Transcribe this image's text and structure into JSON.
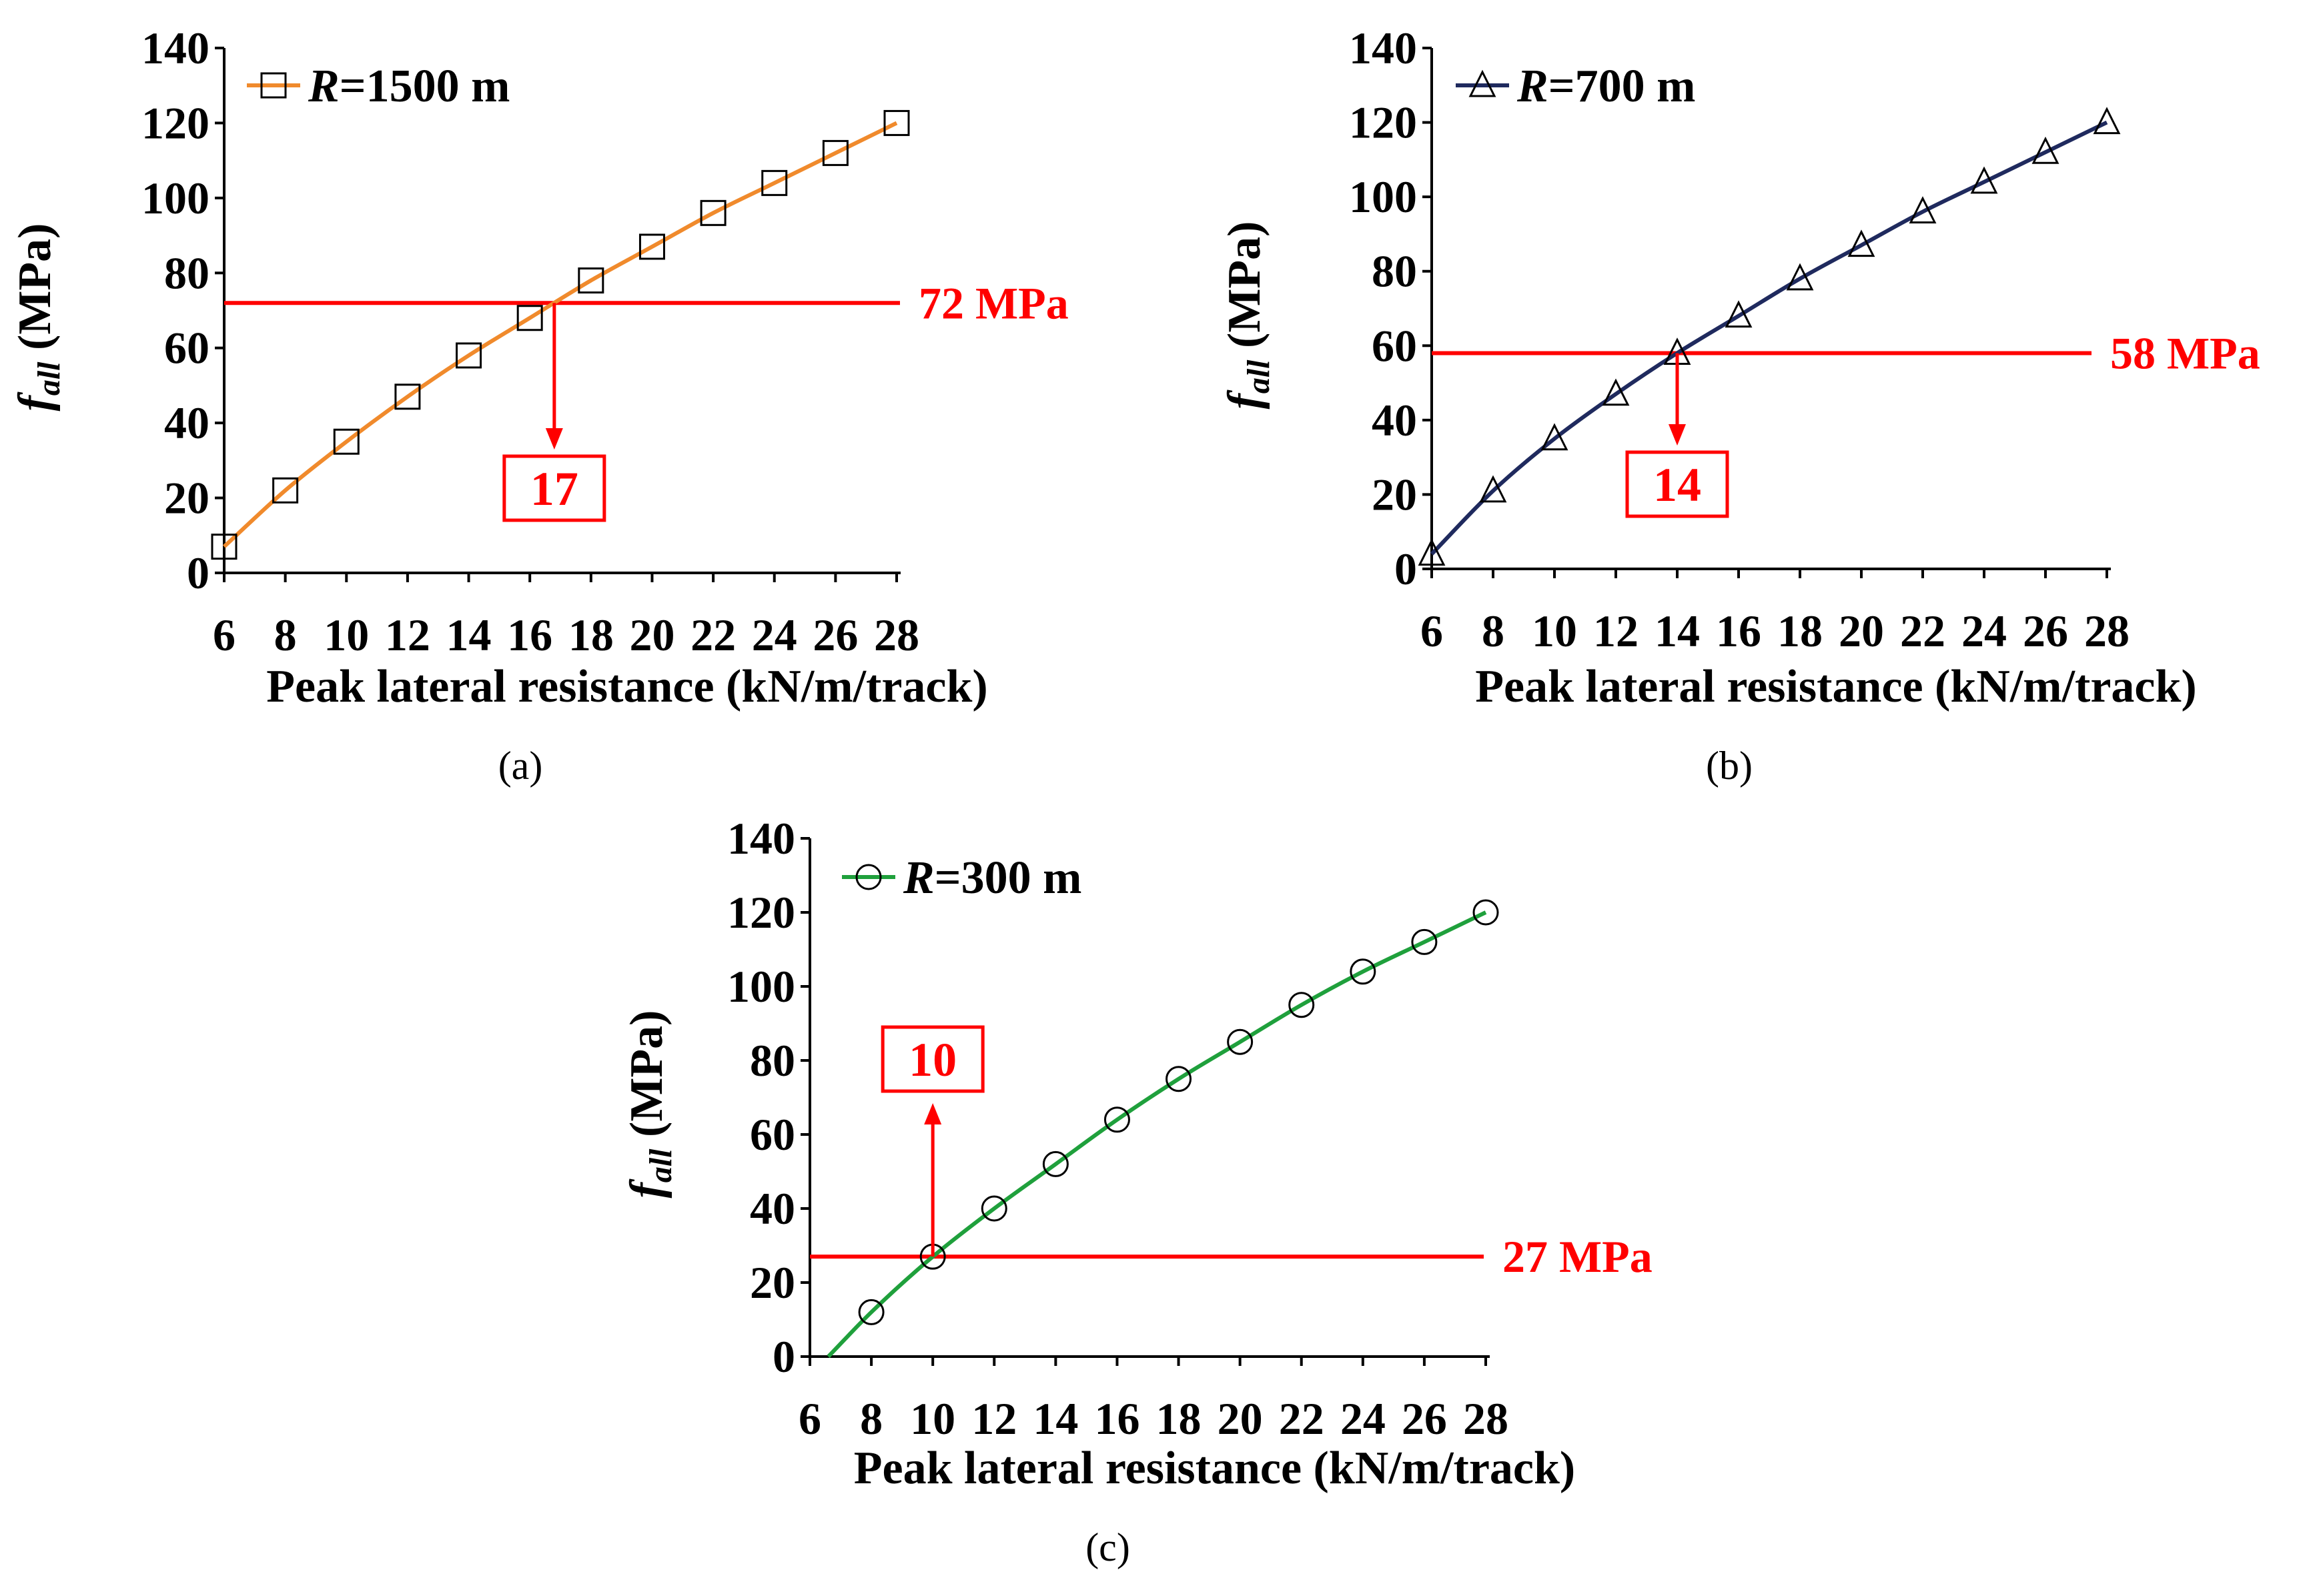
{
  "chart_data": [
    {
      "type": "line",
      "panel_label": "(a)",
      "series": [
        {
          "name": "R=1500 m",
          "legend_prefix": "R",
          "legend_suffix": "=1500 m",
          "marker": "square",
          "color": "#f08a2c",
          "x": [
            6,
            8,
            10,
            12,
            14,
            16,
            18,
            20,
            22,
            24,
            26,
            28
          ],
          "values": [
            7,
            22,
            35,
            47,
            58,
            68,
            78,
            87,
            96,
            104,
            112,
            120
          ]
        }
      ],
      "xlabel": "Peak lateral resistance (kN/m/track)",
      "ylabel_main": "f",
      "ylabel_sub": "all",
      "ylabel_unit": " (MPa)",
      "xlim": [
        6,
        28
      ],
      "ylim": [
        0,
        140
      ],
      "xticks": [
        "6",
        "8",
        "10",
        "12",
        "14",
        "16",
        "18",
        "20",
        "22",
        "24",
        "26",
        "28"
      ],
      "yticks": [
        "0",
        "20",
        "40",
        "60",
        "80",
        "100",
        "120",
        "140"
      ],
      "reference": {
        "y": 72,
        "label": "72 MPa",
        "color": "#ff0000"
      },
      "callout": {
        "x": 17,
        "label": "17",
        "arrow": "down"
      },
      "legend_position": "top-left"
    },
    {
      "type": "line",
      "panel_label": "(b)",
      "series": [
        {
          "name": "R=700 m",
          "legend_prefix": "R",
          "legend_suffix": "=700 m",
          "marker": "triangle",
          "color": "#1f2a5e",
          "x": [
            6,
            8,
            10,
            12,
            14,
            16,
            18,
            20,
            22,
            24,
            26,
            28
          ],
          "values": [
            4,
            21,
            35,
            47,
            58,
            68,
            78,
            87,
            96,
            104,
            112,
            120
          ]
        }
      ],
      "xlabel": "Peak lateral resistance (kN/m/track)",
      "ylabel_main": "f",
      "ylabel_sub": "all",
      "ylabel_unit": " (MPa)",
      "xlim": [
        6,
        28
      ],
      "ylim": [
        0,
        140
      ],
      "xticks": [
        "6",
        "8",
        "10",
        "12",
        "14",
        "16",
        "18",
        "20",
        "22",
        "24",
        "26",
        "28"
      ],
      "yticks": [
        "0",
        "20",
        "40",
        "60",
        "80",
        "100",
        "120",
        "140"
      ],
      "reference": {
        "y": 58,
        "label": "58 MPa",
        "color": "#ff0000"
      },
      "callout": {
        "x": 14,
        "label": "14",
        "arrow": "down"
      },
      "legend_position": "top-left"
    },
    {
      "type": "line",
      "panel_label": "(c)",
      "series": [
        {
          "name": "R=300 m",
          "legend_prefix": "R",
          "legend_suffix": "=300 m",
          "marker": "circle",
          "color": "#1fa03c",
          "x": [
            8,
            10,
            12,
            14,
            16,
            18,
            20,
            22,
            24,
            26,
            28
          ],
          "values": [
            12,
            27,
            40,
            52,
            64,
            75,
            85,
            95,
            104,
            112,
            120
          ]
        }
      ],
      "trend_start": {
        "x": 6.6,
        "y": 0
      },
      "xlabel": "Peak lateral resistance (kN/m/track)",
      "ylabel_main": "f",
      "ylabel_sub": "all",
      "ylabel_unit": " (MPa)",
      "xlim": [
        6,
        28
      ],
      "ylim": [
        0,
        140
      ],
      "xticks": [
        "6",
        "8",
        "10",
        "12",
        "14",
        "16",
        "18",
        "20",
        "22",
        "24",
        "26",
        "28"
      ],
      "yticks": [
        "0",
        "20",
        "40",
        "60",
        "80",
        "100",
        "120",
        "140"
      ],
      "reference": {
        "y": 27,
        "label": "27 MPa",
        "color": "#ff0000"
      },
      "callout": {
        "x": 10,
        "label": "10",
        "arrow": "up"
      },
      "legend_position": "top-left"
    }
  ]
}
